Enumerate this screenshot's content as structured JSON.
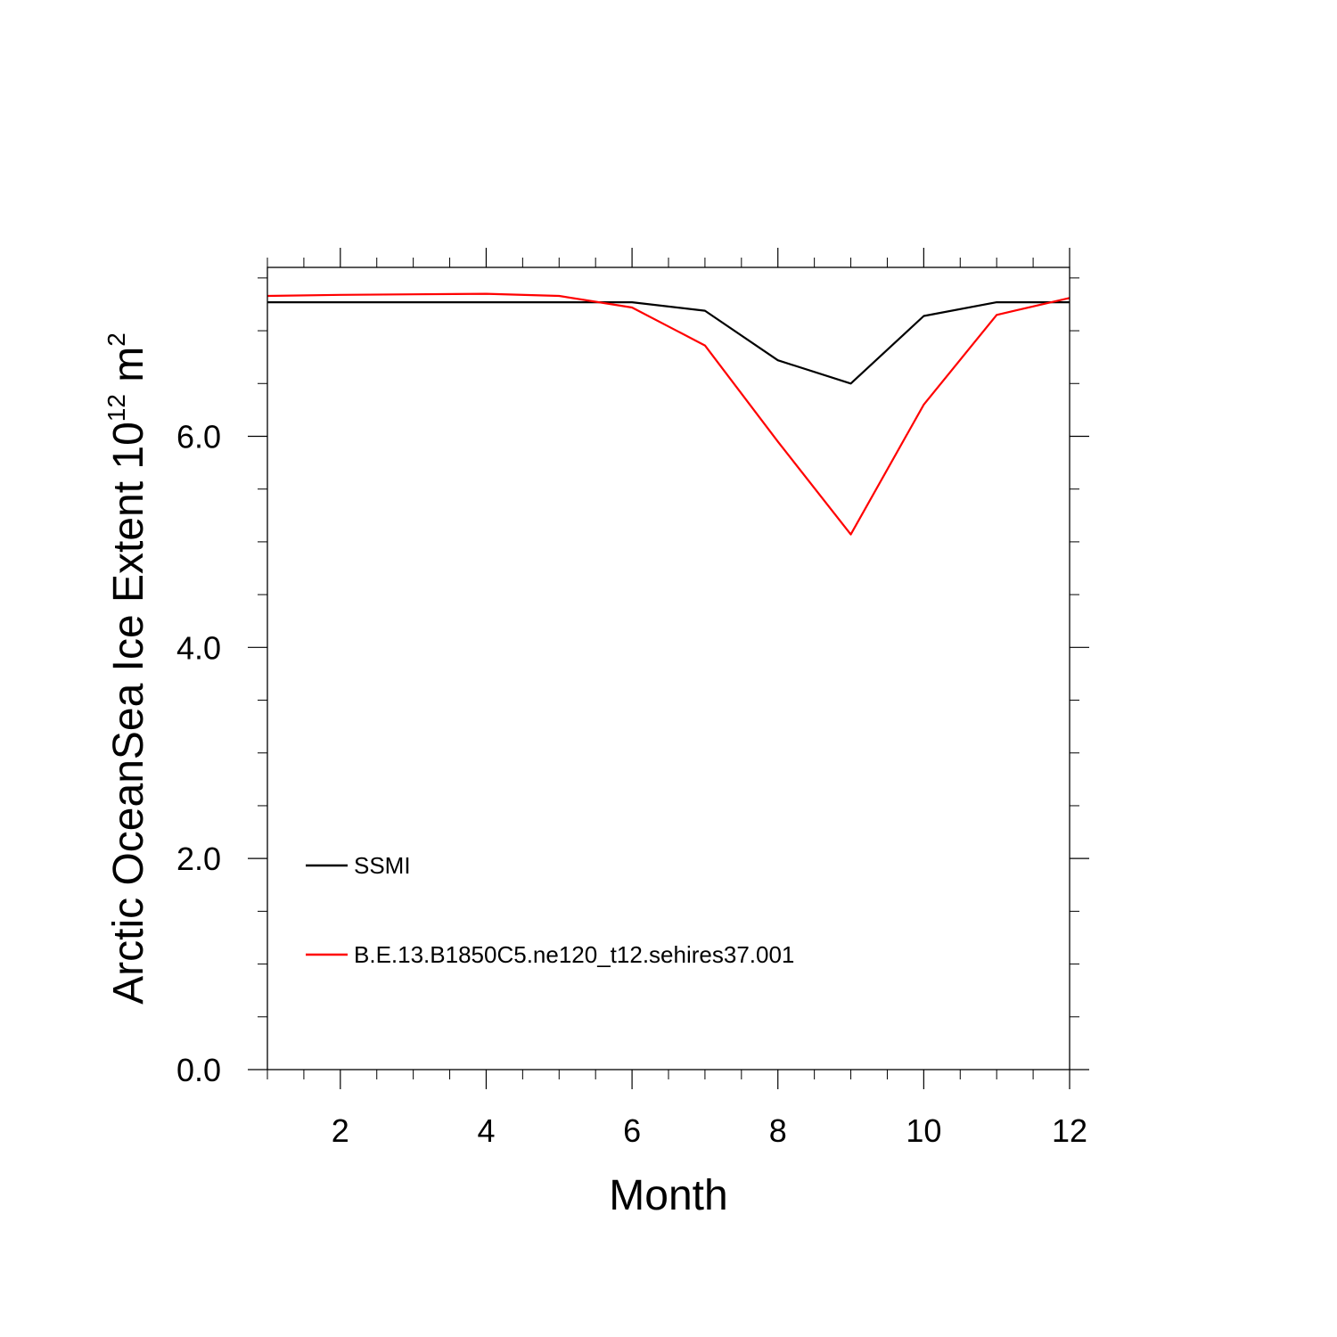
{
  "chart_data": {
    "type": "line",
    "xlabel": "Month",
    "ylabel_main": "Arctic OceanSea Ice Extent 10",
    "ylabel_sup1": "12",
    "ylabel_mid": " m",
    "ylabel_sup2": "2",
    "xlim": [
      1,
      12
    ],
    "ylim": [
      0,
      7.6
    ],
    "x_ticks": [
      2,
      4,
      6,
      8,
      10,
      12
    ],
    "x_tick_labels": [
      "2",
      "4",
      "6",
      "8",
      "10",
      "12"
    ],
    "y_ticks": [
      0,
      2,
      4,
      6
    ],
    "y_tick_labels": [
      "0.0",
      "2.0",
      "4.0",
      "6.0"
    ],
    "legend_position": "bottom-left",
    "series": [
      {
        "name": "SSMI",
        "color": "#000000",
        "x": [
          1,
          2,
          3,
          4,
          5,
          6,
          7,
          8,
          9,
          10,
          11,
          12
        ],
        "values": [
          7.27,
          7.27,
          7.27,
          7.27,
          7.27,
          7.27,
          7.19,
          6.72,
          6.5,
          7.14,
          7.27,
          7.27
        ]
      },
      {
        "name": "B.E.13.B1850C5.ne120_t12.sehires37.001",
        "color": "#ff0000",
        "x": [
          1,
          2,
          3,
          4,
          5,
          6,
          7,
          8,
          9,
          10,
          11,
          12
        ],
        "values": [
          7.33,
          7.34,
          7.345,
          7.35,
          7.33,
          7.22,
          6.86,
          5.95,
          5.07,
          6.3,
          7.15,
          7.31
        ]
      }
    ]
  }
}
